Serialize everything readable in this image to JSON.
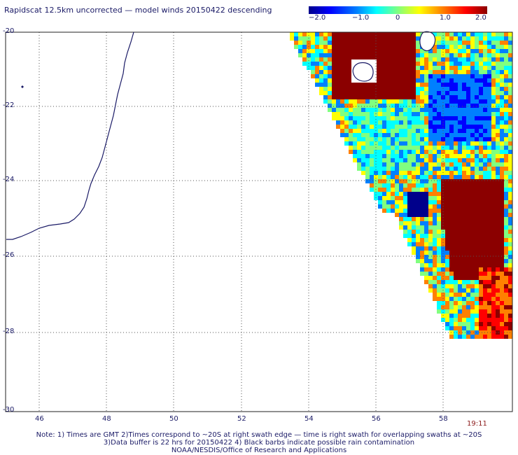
{
  "title": "Rapidscat 12.5km uncorrected — model winds 20150422 descending",
  "colorbar": {
    "ticks": [
      "−2.0",
      "−1.0",
      "0",
      "1.0",
      "2.0"
    ],
    "tick_values": [
      -2.0,
      -1.0,
      0,
      1.0,
      2.0
    ],
    "range": [
      -2.0,
      2.0
    ],
    "colors": [
      "#00008b",
      "#0000ff",
      "#0080ff",
      "#00ffff",
      "#80ff80",
      "#ffff00",
      "#ff8000",
      "#ff0000",
      "#8b0000"
    ]
  },
  "axes": {
    "lat_labels": [
      "-20",
      "-22",
      "-24",
      "-26",
      "-28",
      "-30"
    ],
    "lat_values": [
      -20,
      -22,
      -24,
      -26,
      -28,
      -30
    ],
    "lon_labels": [
      "46",
      "48",
      "50",
      "52",
      "54",
      "56",
      "58"
    ],
    "lon_values": [
      46,
      48,
      50,
      52,
      54,
      56,
      58
    ],
    "lon_range": [
      45,
      59.8
    ],
    "lat_range": [
      -20,
      -30
    ],
    "grid": true
  },
  "time_label": "19:11",
  "notes": [
    "Note: 1) Times are GMT 2)Times correspond to ~20S at right swath edge — time is right swath for overlapping swaths at ~20S",
    "3)Data buffer is 22 hrs for 20150422 4) Black barbs indicate possible rain contamination",
    "NOAA/NESDIS/Office of Research and Applications"
  ]
}
